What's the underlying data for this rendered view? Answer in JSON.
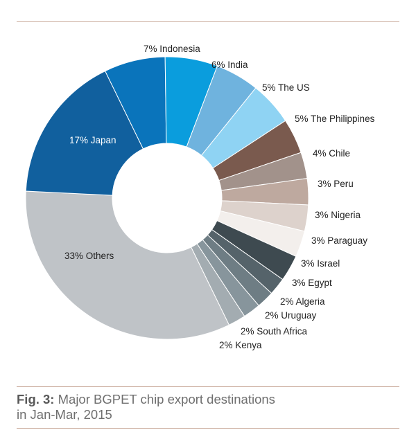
{
  "chart_data": {
    "type": "pie",
    "donut": true,
    "title": "Major BGPET chip export destinations in Jan-Mar, 2015",
    "slices": [
      {
        "label": "Indonesia",
        "value": 7,
        "text": "7% Indonesia",
        "color": "#0a74bb"
      },
      {
        "label": "India",
        "value": 6,
        "text": "6% India",
        "color": "#0a9ddd"
      },
      {
        "label": "The US",
        "value": 5,
        "text": "5% The US",
        "color": "#6fb3de"
      },
      {
        "label": "The Philippines",
        "value": 5,
        "text": "5% The Philippines",
        "color": "#8fd3f3"
      },
      {
        "label": "Chile",
        "value": 4,
        "text": "4% Chile",
        "color": "#7a5a4e"
      },
      {
        "label": "Peru",
        "value": 3,
        "text": "3% Peru",
        "color": "#a2928b"
      },
      {
        "label": "Nigeria",
        "value": 3,
        "text": "3% Nigeria",
        "color": "#bea99f"
      },
      {
        "label": "Paraguay",
        "value": 3,
        "text": "3% Paraguay",
        "color": "#ddd2cc"
      },
      {
        "label": "Israel",
        "value": 3,
        "text": "3% Israel",
        "color": "#f3efec"
      },
      {
        "label": "Egypt",
        "value": 3,
        "text": "3% Egypt",
        "color": "#3e4a50"
      },
      {
        "label": "Algeria",
        "value": 2,
        "text": "2% Algeria",
        "color": "#55636a"
      },
      {
        "label": "Uruguay",
        "value": 2,
        "text": "2% Uruguay",
        "color": "#6e7d84"
      },
      {
        "label": "South Africa",
        "value": 2,
        "text": "2% South Africa",
        "color": "#87959c"
      },
      {
        "label": "Kenya",
        "value": 2,
        "text": "2% Kenya",
        "color": "#a3acb1"
      },
      {
        "label": "Others",
        "value": 33,
        "text": "33% Others",
        "color": "#bfc3c7"
      },
      {
        "label": "Japan",
        "value": 17,
        "text": "17% Japan",
        "color": "#11609e"
      }
    ]
  },
  "caption": {
    "fig_label": "Fig. 3:",
    "line1": "Major BGPET chip export destinations",
    "line2": "in Jan-Mar, 2015"
  }
}
